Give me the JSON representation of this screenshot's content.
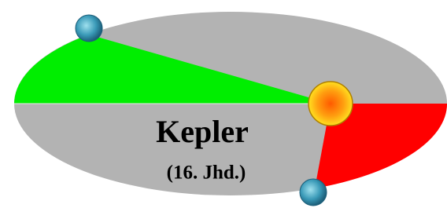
{
  "title": "Kepler",
  "subtitle": "(16. Jhd.)"
}
